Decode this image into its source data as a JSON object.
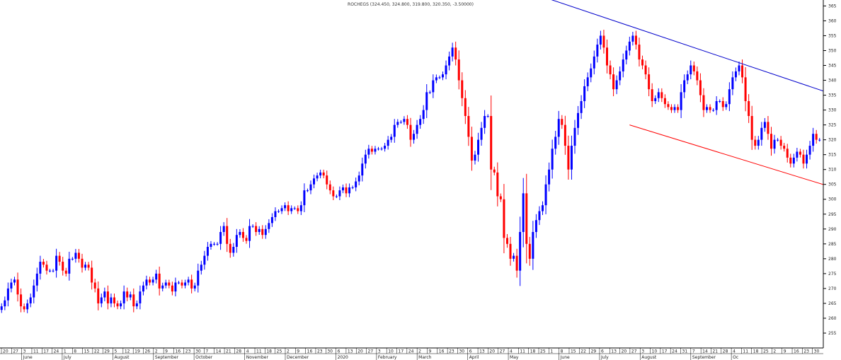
{
  "chart_data": {
    "type": "candlestick",
    "title": "ROCHEGS (324.450, 324.800, 319.800, 320.350, -3.50000)",
    "ylim": [
      250,
      367
    ],
    "y_ticks": [
      255,
      260,
      265,
      270,
      275,
      280,
      285,
      290,
      295,
      300,
      305,
      310,
      315,
      320,
      325,
      330,
      335,
      340,
      345,
      350,
      355,
      360,
      365
    ],
    "grid": false,
    "x_day_ticks": [
      "20",
      "27",
      "3",
      "11",
      "17",
      "24",
      "1",
      "8",
      "15",
      "22",
      "29",
      "5",
      "12",
      "19",
      "26",
      "2",
      "9",
      "16",
      "23",
      "30",
      "7",
      "14",
      "21",
      "28",
      "4",
      "11",
      "18",
      "25",
      "2",
      "9",
      "16",
      "23",
      "30",
      "6",
      "13",
      "20",
      "27",
      "3",
      "10",
      "17",
      "24",
      "2",
      "9",
      "16",
      "23",
      "30",
      "6",
      "13",
      "20",
      "27",
      "4",
      "11",
      "18",
      "25",
      "1",
      "8",
      "15",
      "22",
      "29",
      "6",
      "13",
      "20",
      "27",
      "3",
      "10",
      "17",
      "24",
      "31",
      "7",
      "14",
      "21",
      "28",
      "4",
      "11",
      "18",
      "25",
      "2",
      "9",
      "16",
      "23",
      "30"
    ],
    "x_month_labels": [
      "June",
      "July",
      "August",
      "September",
      "October",
      "November",
      "December",
      "2020",
      "February",
      "March",
      "April",
      "May",
      "June",
      "July",
      "August",
      "September",
      "Oc"
    ],
    "colors": {
      "up": "#0000ff",
      "down": "#ff0000",
      "upper_trendline": "#0000cc",
      "lower_trendline": "#ff0000"
    },
    "upper_trendline": {
      "from_index": 160,
      "from_value": 371,
      "to_index": 270,
      "to_value": 331
    },
    "lower_trendline": {
      "from_index": 195,
      "from_value": 325,
      "to_index": 270,
      "to_value": 300
    },
    "close": [
      264,
      266,
      270,
      272,
      273,
      268,
      264,
      263,
      265,
      267,
      271,
      275,
      279,
      278,
      276,
      276,
      276,
      281,
      279,
      276,
      275,
      280,
      280,
      282,
      280,
      277,
      278,
      277,
      272,
      270,
      265,
      267,
      269,
      265,
      267,
      265,
      264,
      265,
      269,
      267,
      268,
      264,
      265,
      269,
      271,
      273,
      272,
      273,
      275,
      270,
      271,
      272,
      271,
      269,
      272,
      272,
      271,
      272,
      273,
      270,
      271,
      276,
      278,
      281,
      284,
      285,
      285,
      285,
      289,
      291,
      285,
      282,
      284,
      288,
      289,
      287,
      286,
      291,
      291,
      289,
      290,
      288,
      290,
      292,
      294,
      296,
      296,
      297,
      298,
      296,
      297,
      297,
      296,
      298,
      303,
      303,
      305,
      307,
      308,
      309,
      308,
      305,
      303,
      301,
      301,
      303,
      304,
      302,
      304,
      304,
      306,
      308,
      312,
      315,
      317,
      316,
      317,
      317,
      317,
      318,
      320,
      321,
      325,
      326,
      326,
      327,
      325,
      320,
      322,
      325,
      327,
      330,
      336,
      336,
      340,
      341,
      341,
      342,
      345,
      348,
      351,
      347,
      340,
      334,
      328,
      321,
      313,
      315,
      320,
      324,
      328,
      328,
      310,
      309,
      301,
      300,
      287,
      285,
      280,
      281,
      276,
      289,
      302,
      285,
      280,
      289,
      293,
      296,
      298,
      305,
      310,
      317,
      321,
      327,
      325,
      318,
      310,
      318,
      324,
      329,
      333,
      338,
      341,
      344,
      348,
      352,
      355,
      351,
      345,
      342,
      337,
      340,
      343,
      347,
      350,
      353,
      355,
      352,
      347,
      345,
      342,
      337,
      333,
      334,
      336,
      334,
      332,
      331,
      330,
      331,
      330,
      336,
      340,
      342,
      345,
      343,
      340,
      335,
      330,
      331,
      330,
      330,
      333,
      333,
      331,
      332,
      337,
      341,
      343,
      345,
      341,
      333,
      328,
      320,
      318,
      320,
      324,
      326,
      322,
      317,
      320,
      320,
      318,
      317,
      314,
      312,
      314,
      316,
      315,
      312,
      315,
      318,
      322,
      320,
      320
    ]
  }
}
